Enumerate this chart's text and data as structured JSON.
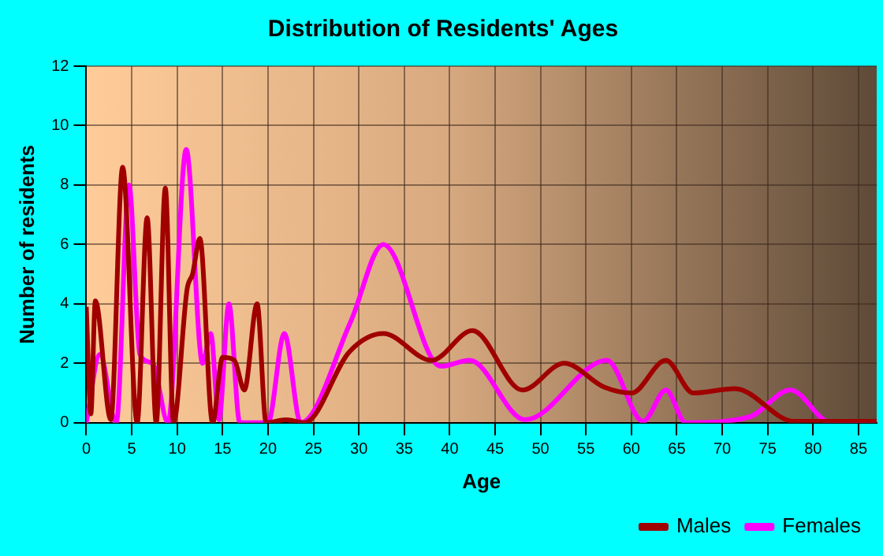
{
  "chart_data": {
    "type": "line",
    "title": "Distribution of Residents' Ages",
    "xlabel": "Age",
    "ylabel": "Number of residents",
    "xlim": [
      0,
      87
    ],
    "xticks": [
      0,
      5,
      10,
      15,
      20,
      25,
      30,
      35,
      40,
      45,
      50,
      55,
      60,
      65,
      70,
      75,
      80,
      85
    ],
    "ylim": [
      0,
      12
    ],
    "yticks": [
      0,
      2,
      4,
      6,
      8,
      10,
      12
    ],
    "grid": true,
    "legend": "bottom right",
    "marker": "none",
    "line_style": "solid",
    "series": [
      {
        "name": "Males",
        "color": "#a00000",
        "x": [
          0,
          0.5,
          1,
          2.7,
          4,
          5.6,
          6.7,
          7.7,
          8.7,
          9.6,
          11.1,
          11.7,
          12.5,
          13.9,
          15,
          16.3,
          17.4,
          18.8,
          19.8,
          22,
          24,
          29,
          32.7,
          38,
          42.5,
          48,
          52.6,
          57,
          60,
          63.8,
          66.8,
          71.4,
          77.9,
          87
        ],
        "values": [
          3.9,
          0.3,
          4.1,
          0.1,
          8.6,
          0,
          6.9,
          0,
          7.9,
          0,
          4.5,
          5,
          6.2,
          0,
          2.2,
          2.1,
          1.1,
          4,
          0,
          0.1,
          0,
          2.4,
          3,
          2.1,
          3.1,
          1.1,
          2,
          1.2,
          1,
          2.1,
          1,
          1.15,
          0.05,
          0.05
        ]
      },
      {
        "name": "Females",
        "color": "#ff00ff",
        "x": [
          0,
          1.5,
          3.3,
          4.7,
          5.9,
          7.3,
          9,
          11,
          12.8,
          13.7,
          14.6,
          15.7,
          16.9,
          20,
          21.8,
          23.6,
          29.1,
          32.7,
          39,
          42.2,
          48.3,
          57.3,
          61.3,
          63.8,
          66,
          73,
          77.5,
          82,
          87
        ],
        "values": [
          0,
          2.3,
          0,
          8,
          2.3,
          2,
          0,
          9.2,
          2,
          3,
          0.1,
          4,
          0,
          0,
          3,
          0,
          3.4,
          6,
          1.9,
          2.1,
          0.1,
          2.1,
          0.05,
          1.1,
          0,
          0.2,
          1.1,
          0,
          0
        ]
      }
    ]
  }
}
